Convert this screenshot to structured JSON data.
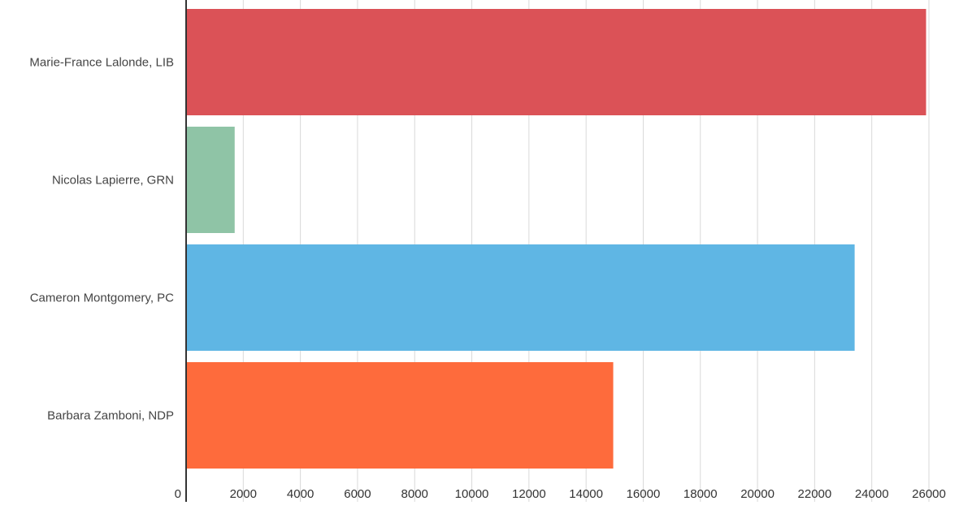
{
  "chart_data": {
    "type": "bar",
    "orientation": "horizontal",
    "categories": [
      "Marie-France Lalonde, LIB",
      "Nicolas Lapierre, GRN",
      "Cameron Montgomery, PC",
      "Barbara Zamboni, NDP"
    ],
    "values": [
      25900,
      1700,
      23400,
      14950
    ],
    "colors": [
      "#db5257",
      "#8fc4a6",
      "#5fb6e4",
      "#fe6b3c"
    ],
    "x_ticks": [
      "0",
      "2000",
      "4000",
      "6000",
      "8000",
      "10000",
      "12000",
      "14000",
      "16000",
      "18000",
      "20000",
      "22000",
      "24000",
      "26000"
    ],
    "xlim": [
      0,
      26000
    ],
    "title": "",
    "xlabel": "",
    "ylabel": "",
    "grid": "vertical",
    "legend": "none"
  }
}
